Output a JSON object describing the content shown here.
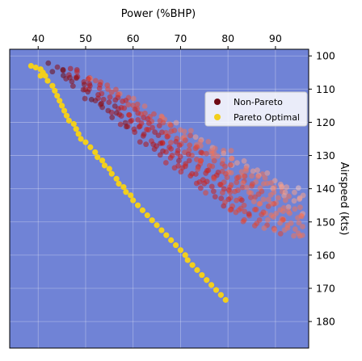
{
  "chart_data": {
    "type": "scatter",
    "title": "",
    "x_axis": {
      "label": "Power (%BHP)",
      "position": "top",
      "range": [
        34,
        97
      ],
      "ticks": [
        40,
        50,
        60,
        70,
        80,
        90
      ]
    },
    "y_axis": {
      "label": "Airspeed (kts)",
      "position": "right",
      "inverted": true,
      "range": [
        98,
        188
      ],
      "ticks": [
        100,
        110,
        120,
        130,
        140,
        150,
        160,
        170,
        180
      ]
    },
    "grid": true,
    "background_color": "#7083d6",
    "legend": {
      "placement": "upper-right"
    },
    "series": [
      {
        "name": "Non-Pareto",
        "color": "#6e0a14",
        "marker": "circle",
        "description_of_spread": "dense band of semi-transparent points from roughly (42,103) to (95,182), colored dark red near the upper-left edge fading through red to pale pink toward the lower-right"
      },
      {
        "name": "Pareto Optimal",
        "color": "#f2cf1d",
        "marker": "circle",
        "points": [
          [
            38.5,
            103
          ],
          [
            39.5,
            103.5
          ],
          [
            40.5,
            104
          ],
          [
            41,
            105
          ],
          [
            40.5,
            106
          ],
          [
            41.5,
            106
          ],
          [
            42,
            107.5
          ],
          [
            43,
            109
          ],
          [
            43.5,
            110.5
          ],
          [
            44,
            112
          ],
          [
            44.5,
            113.5
          ],
          [
            45,
            115
          ],
          [
            45.5,
            116.5
          ],
          [
            46,
            118
          ],
          [
            46.5,
            119.5
          ],
          [
            47.5,
            120.5
          ],
          [
            48,
            122
          ],
          [
            48.5,
            123.5
          ],
          [
            49,
            125
          ],
          [
            50,
            126
          ],
          [
            51,
            127.5
          ],
          [
            52,
            129
          ],
          [
            52.5,
            130.5
          ],
          [
            53.5,
            131.5
          ],
          [
            54,
            133
          ],
          [
            55,
            134
          ],
          [
            55.5,
            135.5
          ],
          [
            56.5,
            137
          ],
          [
            57,
            138.5
          ],
          [
            58,
            139.5
          ],
          [
            58.5,
            141
          ],
          [
            59.5,
            142
          ],
          [
            60,
            143.5
          ],
          [
            61,
            145
          ],
          [
            62,
            146.5
          ],
          [
            63,
            148
          ],
          [
            64,
            149.5
          ],
          [
            65,
            151
          ],
          [
            66,
            152.5
          ],
          [
            67,
            154
          ],
          [
            68,
            155.5
          ],
          [
            69,
            157
          ],
          [
            70,
            158.5
          ],
          [
            71,
            160
          ],
          [
            71.5,
            161.5
          ],
          [
            72.5,
            163
          ],
          [
            73.5,
            164.5
          ],
          [
            74.5,
            166
          ],
          [
            75.5,
            167.5
          ],
          [
            76.5,
            169
          ],
          [
            77.5,
            170.5
          ],
          [
            78.5,
            172
          ],
          [
            79.5,
            173.5
          ]
        ]
      }
    ]
  }
}
